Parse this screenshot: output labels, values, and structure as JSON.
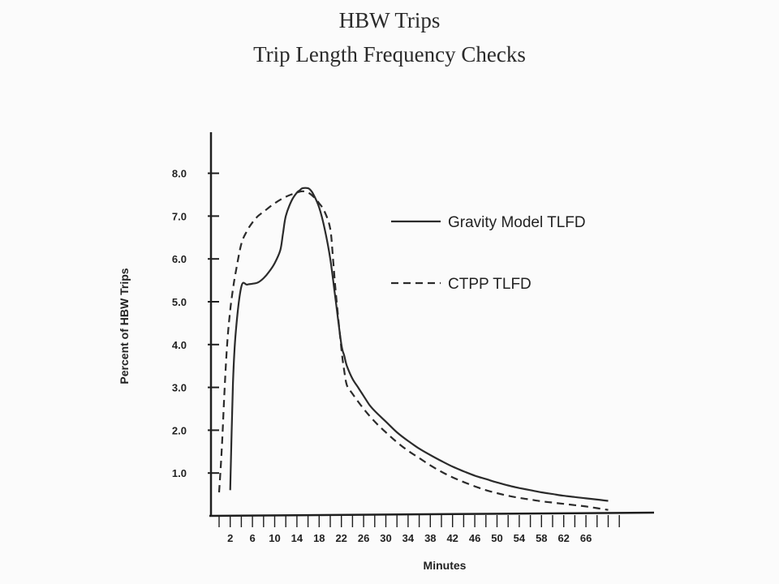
{
  "chart_data": {
    "type": "line",
    "title": "HBW Trips",
    "subtitle": "Trip Length Frequency Checks",
    "xlabel": "Minutes",
    "ylabel": "Percent of HBW Trips",
    "xlim": [
      -0.5,
      76
    ],
    "ylim": [
      0,
      8.8
    ],
    "x_ticks": [
      2,
      6,
      10,
      14,
      18,
      22,
      26,
      30,
      34,
      38,
      42,
      46,
      50,
      54,
      58,
      62,
      66
    ],
    "x_tick_labels": [
      "2",
      "6",
      "10",
      "14",
      "18",
      "22",
      "26",
      "30",
      "34",
      "38",
      "42",
      "46",
      "50",
      "54",
      "58",
      "62",
      "66"
    ],
    "x_minor_ticks": [
      0,
      4,
      8,
      12,
      16,
      20,
      24,
      28,
      32,
      36,
      40,
      44,
      48,
      52,
      56,
      60,
      64,
      68,
      70,
      72
    ],
    "y_ticks": [
      1,
      2,
      3,
      4,
      5,
      6,
      7,
      8
    ],
    "y_tick_labels": [
      "1.0",
      "2.0",
      "3.0",
      "4.0",
      "5.0",
      "6.0",
      "7.0",
      "8.0"
    ],
    "legend_position": "right",
    "grid": false,
    "series": [
      {
        "name": "Gravity Model TLFD",
        "style": "solid",
        "color": "#2b2b2b",
        "x": [
          2,
          2.5,
          3,
          4,
          5,
          6,
          7,
          8,
          9,
          10,
          11,
          11.5,
          12,
          13,
          14,
          14.5,
          15,
          16,
          16.5,
          17,
          18,
          19,
          20,
          21,
          22,
          22.5,
          23,
          24,
          25,
          26,
          27,
          28,
          30,
          32,
          34,
          36,
          38,
          40,
          42,
          44,
          46,
          48,
          50,
          52,
          54,
          56,
          58,
          60,
          62,
          64,
          66,
          68,
          70
        ],
        "y": [
          0.6,
          3.1,
          4.3,
          5.35,
          5.4,
          5.42,
          5.45,
          5.55,
          5.7,
          5.9,
          6.2,
          6.6,
          7.0,
          7.35,
          7.55,
          7.6,
          7.65,
          7.65,
          7.6,
          7.5,
          7.2,
          6.7,
          6.0,
          5.0,
          4.0,
          3.75,
          3.5,
          3.2,
          3.0,
          2.8,
          2.6,
          2.45,
          2.2,
          1.95,
          1.75,
          1.57,
          1.42,
          1.28,
          1.15,
          1.04,
          0.94,
          0.86,
          0.78,
          0.71,
          0.65,
          0.6,
          0.55,
          0.51,
          0.47,
          0.44,
          0.41,
          0.38,
          0.35
        ]
      },
      {
        "name": "CTPP TLFD",
        "style": "dashed",
        "color": "#2b2b2b",
        "x": [
          0,
          0.5,
          1,
          1.5,
          2,
          2.5,
          3,
          4,
          5,
          6,
          7,
          8,
          10,
          12,
          14,
          15,
          16,
          17,
          18,
          19,
          20,
          20.5,
          21,
          22,
          22.5,
          23,
          24,
          26,
          28,
          30,
          32,
          34,
          36,
          38,
          40,
          42,
          44,
          46,
          48,
          50,
          52,
          54,
          56,
          58,
          60,
          62,
          64,
          66,
          68,
          70
        ],
        "y": [
          0.55,
          1.6,
          3.0,
          4.1,
          4.8,
          5.3,
          5.7,
          6.35,
          6.65,
          6.85,
          7.0,
          7.1,
          7.3,
          7.45,
          7.55,
          7.58,
          7.55,
          7.45,
          7.3,
          7.1,
          6.7,
          6.0,
          5.2,
          3.9,
          3.4,
          3.05,
          2.85,
          2.5,
          2.2,
          1.95,
          1.72,
          1.52,
          1.35,
          1.18,
          1.03,
          0.9,
          0.79,
          0.69,
          0.6,
          0.53,
          0.47,
          0.42,
          0.38,
          0.34,
          0.31,
          0.28,
          0.25,
          0.22,
          0.18,
          0.14
        ]
      }
    ]
  }
}
